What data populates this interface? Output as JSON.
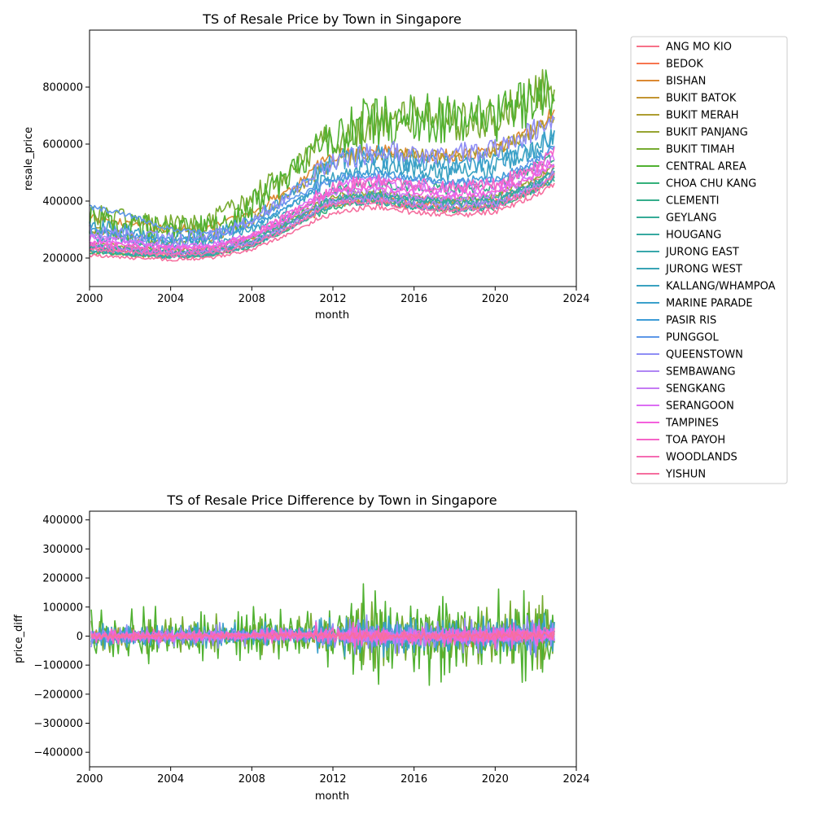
{
  "chart_data": [
    {
      "type": "line",
      "title": "TS of Resale Price by Town in Singapore",
      "xlabel": "month",
      "ylabel": "resale_price",
      "xlim": [
        2000,
        2024
      ],
      "ylim": [
        100000,
        1000000
      ],
      "xticks": [
        "2000",
        "2004",
        "2008",
        "2012",
        "2016",
        "2020",
        "2024"
      ],
      "yticks": [
        "200000",
        "400000",
        "600000",
        "800000"
      ],
      "grid": false,
      "anchor_years": [
        2000,
        2002,
        2004,
        2006,
        2008,
        2010,
        2012,
        2014,
        2016,
        2018,
        2020,
        2022,
        2023
      ],
      "series_anchors": [
        {
          "name": "ANG MO KIO",
          "values": [
            240000,
            230000,
            220000,
            225000,
            260000,
            330000,
            410000,
            420000,
            410000,
            400000,
            410000,
            470000,
            520000
          ],
          "noise": 12000
        },
        {
          "name": "BEDOK",
          "values": [
            230000,
            225000,
            215000,
            220000,
            255000,
            330000,
            400000,
            410000,
            390000,
            380000,
            390000,
            450000,
            500000
          ],
          "noise": 12000
        },
        {
          "name": "BISHAN",
          "values": [
            340000,
            320000,
            300000,
            310000,
            360000,
            450000,
            560000,
            580000,
            560000,
            560000,
            580000,
            650000,
            720000
          ],
          "noise": 25000
        },
        {
          "name": "BUKIT BATOK",
          "values": [
            220000,
            210000,
            205000,
            210000,
            245000,
            310000,
            390000,
            400000,
            380000,
            370000,
            390000,
            440000,
            490000
          ],
          "noise": 12000
        },
        {
          "name": "BUKIT MERAH",
          "values": [
            300000,
            270000,
            260000,
            270000,
            330000,
            430000,
            540000,
            560000,
            560000,
            560000,
            580000,
            650000,
            700000
          ],
          "noise": 30000
        },
        {
          "name": "BUKIT PANJANG",
          "values": [
            250000,
            240000,
            230000,
            235000,
            270000,
            340000,
            420000,
            430000,
            410000,
            400000,
            420000,
            480000,
            530000
          ],
          "noise": 12000
        },
        {
          "name": "BUKIT TIMAH",
          "values": [
            360000,
            330000,
            310000,
            320000,
            420000,
            520000,
            620000,
            680000,
            700000,
            680000,
            700000,
            780000,
            820000
          ],
          "noise": 70000
        },
        {
          "name": "CENTRAL AREA",
          "values": [
            330000,
            300000,
            290000,
            300000,
            380000,
            500000,
            640000,
            680000,
            690000,
            680000,
            690000,
            760000,
            800000
          ],
          "noise": 90000
        },
        {
          "name": "CHOA CHU KANG",
          "values": [
            220000,
            210000,
            205000,
            210000,
            240000,
            310000,
            380000,
            400000,
            380000,
            370000,
            380000,
            440000,
            480000
          ],
          "noise": 12000
        },
        {
          "name": "CLEMENTI",
          "values": [
            240000,
            230000,
            220000,
            230000,
            270000,
            350000,
            440000,
            460000,
            450000,
            440000,
            450000,
            520000,
            560000
          ],
          "noise": 18000
        },
        {
          "name": "GEYLANG",
          "values": [
            230000,
            215000,
            205000,
            215000,
            250000,
            320000,
            400000,
            420000,
            410000,
            400000,
            410000,
            460000,
            500000
          ],
          "noise": 15000
        },
        {
          "name": "HOUGANG",
          "values": [
            240000,
            230000,
            220000,
            225000,
            260000,
            330000,
            410000,
            420000,
            400000,
            390000,
            400000,
            460000,
            510000
          ],
          "noise": 12000
        },
        {
          "name": "JURONG EAST",
          "values": [
            240000,
            230000,
            215000,
            220000,
            255000,
            330000,
            410000,
            420000,
            400000,
            390000,
            400000,
            460000,
            500000
          ],
          "noise": 14000
        },
        {
          "name": "JURONG WEST",
          "values": [
            225000,
            215000,
            205000,
            210000,
            245000,
            310000,
            390000,
            400000,
            380000,
            370000,
            380000,
            440000,
            480000
          ],
          "noise": 12000
        },
        {
          "name": "KALLANG/WHAMPOA",
          "values": [
            280000,
            260000,
            245000,
            255000,
            300000,
            390000,
            490000,
            520000,
            510000,
            500000,
            520000,
            580000,
            640000
          ],
          "noise": 35000
        },
        {
          "name": "MARINE PARADE",
          "values": [
            320000,
            290000,
            270000,
            280000,
            330000,
            430000,
            540000,
            560000,
            540000,
            530000,
            540000,
            590000,
            640000
          ],
          "noise": 40000
        },
        {
          "name": "PASIR RIS",
          "values": [
            300000,
            280000,
            265000,
            270000,
            310000,
            390000,
            480000,
            500000,
            480000,
            470000,
            480000,
            540000,
            590000
          ],
          "noise": 15000
        },
        {
          "name": "PUNGGOL",
          "values": [
            380000,
            350000,
            300000,
            290000,
            330000,
            410000,
            480000,
            490000,
            470000,
            460000,
            470000,
            540000,
            600000
          ],
          "noise": 15000
        },
        {
          "name": "QUEENSTOWN",
          "values": [
            300000,
            280000,
            265000,
            275000,
            330000,
            430000,
            540000,
            570000,
            570000,
            570000,
            580000,
            650000,
            700000
          ],
          "noise": 40000
        },
        {
          "name": "SEMBAWANG",
          "values": [
            250000,
            230000,
            220000,
            225000,
            255000,
            320000,
            400000,
            410000,
            390000,
            380000,
            390000,
            450000,
            500000
          ],
          "noise": 14000
        },
        {
          "name": "SENGKANG",
          "values": [
            280000,
            260000,
            240000,
            240000,
            270000,
            340000,
            430000,
            440000,
            420000,
            410000,
            420000,
            490000,
            540000
          ],
          "noise": 14000
        },
        {
          "name": "SERANGOON",
          "values": [
            270000,
            255000,
            240000,
            245000,
            280000,
            360000,
            450000,
            470000,
            450000,
            440000,
            450000,
            510000,
            560000
          ],
          "noise": 18000
        },
        {
          "name": "TAMPINES",
          "values": [
            260000,
            245000,
            235000,
            240000,
            275000,
            350000,
            440000,
            450000,
            430000,
            420000,
            430000,
            490000,
            540000
          ],
          "noise": 12000
        },
        {
          "name": "TOA PAYOH",
          "values": [
            250000,
            235000,
            225000,
            235000,
            275000,
            360000,
            450000,
            470000,
            460000,
            450000,
            460000,
            520000,
            570000
          ],
          "noise": 25000
        },
        {
          "name": "WOODLANDS",
          "values": [
            230000,
            220000,
            210000,
            215000,
            245000,
            310000,
            390000,
            400000,
            380000,
            370000,
            380000,
            440000,
            490000
          ],
          "noise": 12000
        },
        {
          "name": "YISHUN",
          "values": [
            210000,
            200000,
            195000,
            200000,
            230000,
            290000,
            360000,
            380000,
            360000,
            350000,
            360000,
            420000,
            460000
          ],
          "noise": 10000
        }
      ],
      "colors": [
        "#f77189",
        "#f7754f",
        "#dc8932",
        "#c39532",
        "#ae9d31",
        "#97a431",
        "#77ab31",
        "#50b131",
        "#33b07a",
        "#35ad8b",
        "#36ab97",
        "#37a9a1",
        "#38a7ab",
        "#39a4b5",
        "#3aa2c0",
        "#3ba0cb",
        "#3d9cd7",
        "#5d97e8",
        "#8f8ef5",
        "#af86f4",
        "#c57bf4",
        "#dc6ef4",
        "#f461dd",
        "#f565c8",
        "#f56cb3",
        "#f66e9e"
      ]
    },
    {
      "type": "line",
      "title": "TS of Resale Price Difference by Town in Singapore",
      "xlabel": "month",
      "ylabel": "price_diff",
      "xlim": [
        2000,
        2024
      ],
      "ylim": [
        -450000,
        430000
      ],
      "xticks": [
        "2000",
        "2004",
        "2008",
        "2012",
        "2016",
        "2020",
        "2024"
      ],
      "yticks": [
        "400000",
        "300000",
        "200000",
        "100000",
        "0",
        "−100000",
        "−200000",
        "−300000",
        "−400000"
      ],
      "grid": false
    }
  ],
  "legend": {
    "placement": "outside-right",
    "entries": [
      "ANG MO KIO",
      "BEDOK",
      "BISHAN",
      "BUKIT BATOK",
      "BUKIT MERAH",
      "BUKIT PANJANG",
      "BUKIT TIMAH",
      "CENTRAL AREA",
      "CHOA CHU KANG",
      "CLEMENTI",
      "GEYLANG",
      "HOUGANG",
      "JURONG EAST",
      "JURONG WEST",
      "KALLANG/WHAMPOA",
      "MARINE PARADE",
      "PASIR RIS",
      "PUNGGOL",
      "QUEENSTOWN",
      "SEMBAWANG",
      "SENGKANG",
      "SERANGOON",
      "TAMPINES",
      "TOA PAYOH",
      "WOODLANDS",
      "YISHUN"
    ]
  }
}
